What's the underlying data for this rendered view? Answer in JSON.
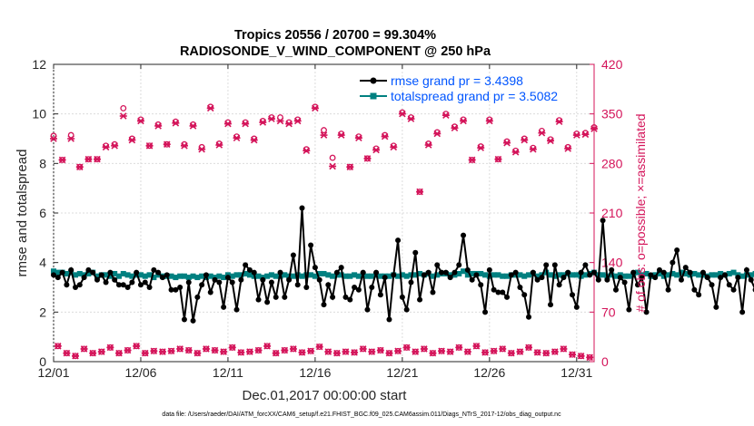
{
  "chart_data": {
    "type": "line",
    "title_line1": "Tropics 20556 / 20700 = 99.304%",
    "title_line2": "RADIOSONDE_V_WIND_COMPONENT @ 250 hPa",
    "xlabel": "Dec.01,2017 00:00:00 start",
    "ylabel": "rmse and totalspread",
    "ylabel_right": "# of obs: o=possible; ×=assimilated",
    "footnote": "data file: /Users/raeder/DAI/ATM_forcXX/CAM6_setup/f.e21.FHIST_BGC.f09_025.CAM6assim.011/Diags_NTrS_2017-12/obs_diag_output.nc",
    "xlim": [
      0,
      31
    ],
    "ylim": [
      0,
      12
    ],
    "ylim_right": [
      0,
      420
    ],
    "x_ticks": [
      0,
      5,
      10,
      15,
      20,
      25,
      30
    ],
    "x_tick_labels": [
      "12/01",
      "12/06",
      "12/11",
      "12/16",
      "12/21",
      "12/26",
      "12/31"
    ],
    "y_ticks": [
      0,
      2,
      4,
      6,
      8,
      10,
      12
    ],
    "y_tick_labels": [
      "0",
      "2",
      "4",
      "6",
      "8",
      "10",
      "12"
    ],
    "y_right_ticks": [
      0,
      70,
      140,
      210,
      280,
      350,
      420
    ],
    "y_right_tick_labels": [
      "0",
      "70",
      "140",
      "210",
      "280",
      "350",
      "420"
    ],
    "step_days": 0.25,
    "colors": {
      "rmse": "#000000",
      "spread": "#008080",
      "obs": "#d4145a",
      "legend_text": "#0055ff",
      "right_axis": "#d4145a"
    },
    "series": [
      {
        "name": "rmse grand pr = 3.4398",
        "values": [
          3.5,
          3.4,
          3.6,
          3.1,
          3.7,
          3.0,
          3.1,
          3.4,
          3.7,
          3.6,
          3.3,
          3.5,
          3.2,
          3.6,
          3.3,
          3.1,
          3.1,
          3.0,
          3.2,
          3.6,
          3.1,
          3.2,
          3.0,
          3.7,
          3.6,
          3.4,
          3.5,
          2.9,
          2.9,
          3.0,
          1.7,
          3.2,
          1.65,
          2.6,
          3.1,
          3.5,
          2.8,
          3.3,
          3.2,
          2.2,
          3.4,
          3.2,
          2.1,
          3.3,
          3.9,
          3.7,
          3.6,
          2.5,
          3.3,
          2.4,
          3.2,
          2.6,
          3.6,
          2.6,
          3.3,
          4.3,
          3.1,
          6.2,
          3.0,
          4.7,
          3.8,
          3.3,
          2.3,
          3.1,
          2.6,
          3.6,
          3.8,
          2.6,
          2.5,
          3.0,
          2.9,
          3.6,
          2.1,
          3.0,
          3.6,
          2.7,
          3.4,
          1.7,
          3.5,
          4.9,
          2.6,
          2.1,
          3.2,
          4.4,
          2.5,
          3.5,
          3.6,
          2.8,
          3.9,
          3.6,
          3.6,
          3.4,
          3.6,
          3.9,
          5.1,
          3.7,
          3.3,
          3.5,
          3.1,
          2.0,
          3.7,
          2.9,
          2.8,
          2.8,
          2.6,
          3.5,
          3.6,
          3.0,
          2.7,
          1.8,
          3.6,
          3.3,
          3.4,
          3.9,
          2.3,
          3.9,
          3.1,
          3.4,
          3.6,
          2.7,
          2.2,
          3.6,
          3.9,
          3.5,
          3.6,
          3.3,
          5.7,
          3.3,
          3.7,
          2.9,
          3.4,
          3.2,
          2.1,
          3.6,
          3.1,
          3.4,
          2.0,
          3.5,
          3.4,
          3.7,
          3.6,
          2.9,
          4.0,
          4.5,
          3.3,
          3.8,
          3.6,
          2.9,
          2.7,
          3.6,
          3.4,
          3.1,
          2.2,
          3.4,
          3.5,
          3.1,
          2.9,
          3.4,
          2.0,
          3.7,
          3.3,
          2.9,
          2.6,
          3.9,
          2.8,
          2.0,
          3.6,
          1.7,
          3.9,
          3.1,
          2.9,
          3.3,
          2.6
        ]
      },
      {
        "name": "totalspread grand pr = 3.5082",
        "values": [
          3.65,
          3.6,
          3.6,
          3.55,
          3.6,
          3.5,
          3.55,
          3.5,
          3.55,
          3.6,
          3.45,
          3.5,
          3.5,
          3.45,
          3.55,
          3.45,
          3.55,
          3.5,
          3.45,
          3.5,
          3.5,
          3.45,
          3.5,
          3.4,
          3.5,
          3.45,
          3.45,
          3.45,
          3.4,
          3.45,
          3.45,
          3.4,
          3.45,
          3.4,
          3.45,
          3.4,
          3.45,
          3.4,
          3.45,
          3.4,
          3.5,
          3.45,
          3.5,
          3.5,
          3.55,
          3.5,
          3.45,
          3.45,
          3.4,
          3.45,
          3.5,
          3.45,
          3.45,
          3.5,
          3.45,
          3.45,
          3.5,
          3.45,
          3.5,
          3.5,
          3.45,
          3.55,
          3.55,
          3.5,
          3.45,
          3.5,
          3.5,
          3.45,
          3.45,
          3.5,
          3.45,
          3.5,
          3.45,
          3.45,
          3.5,
          3.45,
          3.45,
          3.45,
          3.5,
          3.45,
          3.5,
          3.45,
          3.5,
          3.5,
          3.55,
          3.5,
          3.55,
          3.45,
          3.5,
          3.55,
          3.55,
          3.5,
          3.5,
          3.55,
          3.65,
          3.5,
          3.55,
          3.55,
          3.55,
          3.5,
          3.45,
          3.5,
          3.5,
          3.45,
          3.45,
          3.5,
          3.5,
          3.5,
          3.45,
          3.5,
          3.55,
          3.45,
          3.5,
          3.6,
          3.5,
          3.45,
          3.5,
          3.5,
          3.55,
          3.5,
          3.5,
          3.45,
          3.5,
          3.55,
          3.6,
          3.5,
          3.5,
          3.45,
          3.5,
          3.45,
          3.5,
          3.45,
          3.45,
          3.5,
          3.6,
          3.5,
          3.55,
          3.45,
          3.5,
          3.55,
          3.45,
          3.5,
          3.55,
          3.5,
          3.6,
          3.55,
          3.5,
          3.55,
          3.5,
          3.5,
          3.45,
          3.5,
          3.5,
          3.55,
          3.5,
          3.55,
          3.6,
          3.5,
          3.45,
          3.5,
          3.5,
          3.55,
          3.5,
          3.45,
          3.5,
          3.45,
          3.5,
          3.45,
          3.45,
          3.5,
          3.45,
          3.45,
          3.45
        ]
      },
      {
        "name": "# obs possible (00Z/12Z)",
        "x": [
          0.0,
          0.5,
          1.0,
          1.5,
          2.0,
          2.5,
          3.0,
          3.5,
          4.0,
          4.5,
          5.0,
          5.5,
          6.0,
          6.5,
          7.0,
          7.5,
          8.0,
          8.5,
          9.0,
          9.5,
          10.0,
          10.5,
          11.0,
          11.5,
          12.0,
          12.5,
          13.0,
          13.5,
          14.0,
          14.5,
          15.0,
          15.5,
          16.0,
          16.5,
          17.0,
          17.5,
          18.0,
          18.5,
          19.0,
          19.5,
          20.0,
          20.5,
          21.0,
          21.5,
          22.0,
          22.5,
          23.0,
          23.5,
          24.0,
          24.5,
          25.0,
          25.5,
          26.0,
          26.5,
          27.0,
          27.5,
          28.0,
          28.5,
          29.0,
          29.5,
          30.0,
          30.5,
          31.0
        ],
        "values": [
          319,
          285,
          320,
          275,
          286,
          286,
          305,
          307,
          358,
          315,
          342,
          305,
          335,
          307,
          339,
          307,
          335,
          303,
          360,
          308,
          338,
          318,
          338,
          315,
          340,
          345,
          345,
          338,
          342,
          300,
          360,
          327,
          288,
          322,
          275,
          318,
          287,
          301,
          320,
          305,
          352,
          345,
          240,
          308,
          324,
          350,
          332,
          342,
          285,
          304,
          342,
          286,
          311,
          298,
          315,
          302,
          326,
          314,
          341,
          303,
          322,
          323,
          331
        ]
      },
      {
        "name": "# obs assimilated (00Z/12Z)",
        "x": [
          0.0,
          0.5,
          1.0,
          1.5,
          2.0,
          2.5,
          3.0,
          3.5,
          4.0,
          4.5,
          5.0,
          5.5,
          6.0,
          6.5,
          7.0,
          7.5,
          8.0,
          8.5,
          9.0,
          9.5,
          10.0,
          10.5,
          11.0,
          11.5,
          12.0,
          12.5,
          13.0,
          13.5,
          14.0,
          14.5,
          15.0,
          15.5,
          16.0,
          16.5,
          17.0,
          17.5,
          18.0,
          18.5,
          19.0,
          19.5,
          20.0,
          20.5,
          21.0,
          21.5,
          22.0,
          22.5,
          23.0,
          23.5,
          24.0,
          24.5,
          25.0,
          25.5,
          26.0,
          26.5,
          27.0,
          27.5,
          28.0,
          28.5,
          29.0,
          29.5,
          30.0,
          30.5,
          31.0
        ],
        "values": [
          315,
          285,
          315,
          275,
          286,
          286,
          303,
          305,
          347,
          313,
          340,
          305,
          333,
          307,
          337,
          305,
          333,
          300,
          358,
          306,
          336,
          316,
          336,
          313,
          338,
          343,
          340,
          336,
          340,
          298,
          358,
          320,
          276,
          320,
          275,
          316,
          287,
          299,
          318,
          303,
          350,
          343,
          240,
          306,
          322,
          348,
          330,
          340,
          285,
          302,
          340,
          286,
          309,
          296,
          313,
          300,
          323,
          312,
          339,
          301,
          320,
          321,
          329
        ]
      },
      {
        "name": "# obs possible (06Z/18Z)",
        "x": [
          0.25,
          0.75,
          1.25,
          1.75,
          2.25,
          2.75,
          3.25,
          3.75,
          4.25,
          4.75,
          5.25,
          5.75,
          6.25,
          6.75,
          7.25,
          7.75,
          8.25,
          8.75,
          9.25,
          9.75,
          10.25,
          10.75,
          11.25,
          11.75,
          12.25,
          12.75,
          13.25,
          13.75,
          14.25,
          14.75,
          15.25,
          15.75,
          16.25,
          16.75,
          17.25,
          17.75,
          18.25,
          18.75,
          19.25,
          19.75,
          20.25,
          20.75,
          21.25,
          21.75,
          22.25,
          22.75,
          23.25,
          23.75,
          24.25,
          24.75,
          25.25,
          25.75,
          26.25,
          26.75,
          27.25,
          27.75,
          28.25,
          28.75,
          29.25,
          29.75,
          30.25,
          30.75
        ],
        "values": [
          22,
          12,
          8,
          18,
          12,
          14,
          20,
          12,
          16,
          22,
          12,
          15,
          14,
          15,
          18,
          16,
          12,
          18,
          16,
          14,
          20,
          13,
          14,
          16,
          22,
          12,
          16,
          18,
          13,
          15,
          21,
          14,
          12,
          14,
          13,
          18,
          14,
          16,
          12,
          15,
          20,
          14,
          18,
          12,
          15,
          14,
          20,
          14,
          22,
          13,
          15,
          18,
          12,
          14,
          20,
          13,
          12,
          14,
          18,
          10,
          8,
          6
        ]
      },
      {
        "name": "# obs assimilated (06Z/18Z)",
        "x": [
          0.25,
          0.75,
          1.25,
          1.75,
          2.25,
          2.75,
          3.25,
          3.75,
          4.25,
          4.75,
          5.25,
          5.75,
          6.25,
          6.75,
          7.25,
          7.75,
          8.25,
          8.75,
          9.25,
          9.75,
          10.25,
          10.75,
          11.25,
          11.75,
          12.25,
          12.75,
          13.25,
          13.75,
          14.25,
          14.75,
          15.25,
          15.75,
          16.25,
          16.75,
          17.25,
          17.75,
          18.25,
          18.75,
          19.25,
          19.75,
          20.25,
          20.75,
          21.25,
          21.75,
          22.25,
          22.75,
          23.25,
          23.75,
          24.25,
          24.75,
          25.25,
          25.75,
          26.25,
          26.75,
          27.25,
          27.75,
          28.25,
          28.75,
          29.25,
          29.75,
          30.25,
          30.75
        ],
        "values": [
          22,
          12,
          8,
          18,
          12,
          14,
          20,
          12,
          16,
          22,
          12,
          15,
          14,
          15,
          18,
          16,
          12,
          18,
          16,
          14,
          20,
          13,
          14,
          16,
          22,
          12,
          16,
          18,
          13,
          15,
          21,
          14,
          12,
          14,
          13,
          18,
          14,
          16,
          12,
          15,
          20,
          14,
          18,
          12,
          15,
          14,
          20,
          14,
          22,
          13,
          15,
          18,
          12,
          14,
          20,
          13,
          12,
          14,
          18,
          10,
          8,
          6
        ]
      }
    ]
  }
}
